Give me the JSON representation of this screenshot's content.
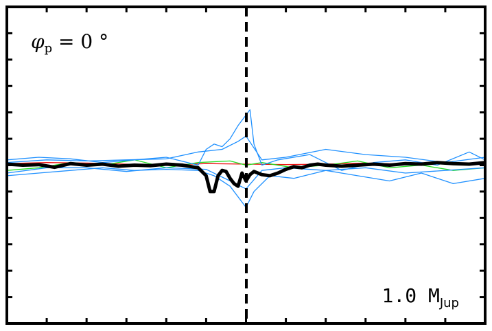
{
  "chart_data": {
    "type": "line",
    "title": "",
    "xlabel": "",
    "ylabel": "",
    "xlim": [
      -3,
      3
    ],
    "ylim": [
      -3,
      3
    ],
    "grid": false,
    "annotations": {
      "phase_symbol": "φ",
      "phase_subscript": "p",
      "phase_value": " = 0 °",
      "mass_value": "1.0 M",
      "mass_subscript": "Jup"
    },
    "series": [
      {
        "color": "#000000",
        "style": "thick-mean",
        "x": [
          -3.0,
          -2.8,
          -2.6,
          -2.4,
          -2.2,
          -2.0,
          -1.8,
          -1.6,
          -1.4,
          -1.2,
          -1.0,
          -0.8,
          -0.6,
          -0.5,
          -0.45,
          -0.4,
          -0.35,
          -0.3,
          -0.25,
          -0.2,
          -0.15,
          -0.1,
          -0.05,
          0.0,
          0.05,
          0.1,
          0.2,
          0.3,
          0.4,
          0.5,
          0.6,
          0.7,
          0.8,
          0.9,
          1.0,
          1.2,
          1.4,
          1.6,
          1.8,
          2.0,
          2.2,
          2.4,
          2.6,
          2.8,
          3.0
        ],
        "y": [
          0.02,
          0.0,
          0.01,
          -0.04,
          0.03,
          0.0,
          0.02,
          -0.02,
          0.0,
          -0.01,
          0.02,
          0.0,
          -0.05,
          -0.2,
          -0.5,
          -0.5,
          -0.2,
          -0.1,
          -0.12,
          -0.25,
          -0.35,
          -0.4,
          -0.15,
          -0.3,
          -0.18,
          -0.12,
          -0.18,
          -0.2,
          -0.15,
          -0.08,
          -0.03,
          -0.05,
          0.0,
          0.02,
          0.0,
          -0.02,
          0.0,
          0.02,
          0.0,
          0.03,
          0.02,
          0.05,
          0.03,
          0.02,
          0.05
        ]
      },
      {
        "color": "#ee1111",
        "style": "thin",
        "x": [
          -3.0,
          -2.5,
          -2.0,
          -1.5,
          -1.0,
          -0.5,
          0.0,
          0.5,
          1.0,
          1.5,
          2.0,
          2.5,
          3.0
        ],
        "y": [
          0.03,
          0.05,
          0.04,
          0.02,
          0.0,
          0.03,
          0.02,
          0.01,
          0.02,
          0.04,
          0.02,
          0.03,
          0.01
        ]
      },
      {
        "color": "#22dd22",
        "style": "thin",
        "x": [
          -3.0,
          -2.6,
          -2.2,
          -1.8,
          -1.4,
          -1.0,
          -0.6,
          -0.2,
          0.0,
          0.2,
          0.6,
          1.0,
          1.4,
          1.8,
          2.2,
          2.6,
          3.0
        ],
        "y": [
          -0.1,
          -0.05,
          0.05,
          0.0,
          0.1,
          -0.05,
          0.05,
          0.08,
          0.0,
          0.05,
          -0.05,
          0.0,
          0.08,
          -0.05,
          0.0,
          -0.1,
          -0.05
        ]
      },
      {
        "color": "#1e90ff",
        "style": "thin",
        "x": [
          -3.0,
          -2.6,
          -2.2,
          -1.8,
          -1.4,
          -1.0,
          -0.6,
          -0.5,
          -0.4,
          -0.3,
          -0.2,
          -0.1,
          0.0,
          0.05,
          0.1,
          0.2,
          0.4,
          0.8,
          1.2,
          1.6,
          2.0,
          2.4,
          2.8,
          3.0
        ],
        "y": [
          0.1,
          0.15,
          0.12,
          0.05,
          0.1,
          0.15,
          0.0,
          0.3,
          0.4,
          0.35,
          0.5,
          0.75,
          0.95,
          1.05,
          0.4,
          0.0,
          0.1,
          0.2,
          -0.1,
          0.05,
          0.1,
          0.0,
          0.25,
          0.1
        ]
      },
      {
        "color": "#1e90ff",
        "style": "thin",
        "x": [
          -3.0,
          -2.6,
          -2.2,
          -1.8,
          -1.4,
          -1.0,
          -0.6,
          -0.4,
          -0.2,
          0.0,
          0.1,
          0.3,
          0.6,
          1.0,
          1.4,
          1.8,
          2.2,
          2.6,
          3.0
        ],
        "y": [
          -0.2,
          -0.15,
          -0.1,
          -0.05,
          -0.1,
          -0.08,
          -0.1,
          -0.2,
          -0.4,
          -0.8,
          -0.5,
          -0.2,
          -0.25,
          -0.1,
          -0.2,
          -0.3,
          -0.15,
          -0.35,
          -0.25
        ]
      },
      {
        "color": "#1e90ff",
        "style": "thin",
        "x": [
          -3.0,
          -2.5,
          -2.0,
          -1.5,
          -1.0,
          -0.6,
          -0.3,
          -0.1,
          0.0,
          0.2,
          0.5,
          1.0,
          1.5,
          2.0,
          2.5,
          3.0
        ],
        "y": [
          0.05,
          0.1,
          0.08,
          0.1,
          0.12,
          0.25,
          0.3,
          0.45,
          0.55,
          0.1,
          0.15,
          0.3,
          0.2,
          0.15,
          0.05,
          0.15
        ]
      },
      {
        "color": "#1e90ff",
        "style": "thin",
        "x": [
          -3.0,
          -2.5,
          -2.0,
          -1.5,
          -1.0,
          -0.5,
          -0.2,
          0.0,
          0.2,
          0.5,
          1.0,
          1.5,
          2.0,
          2.5,
          3.0
        ],
        "y": [
          -0.15,
          -0.05,
          -0.05,
          -0.12,
          -0.05,
          -0.08,
          -0.3,
          -0.45,
          -0.1,
          -0.05,
          -0.1,
          -0.05,
          -0.15,
          -0.1,
          -0.05
        ]
      }
    ]
  }
}
